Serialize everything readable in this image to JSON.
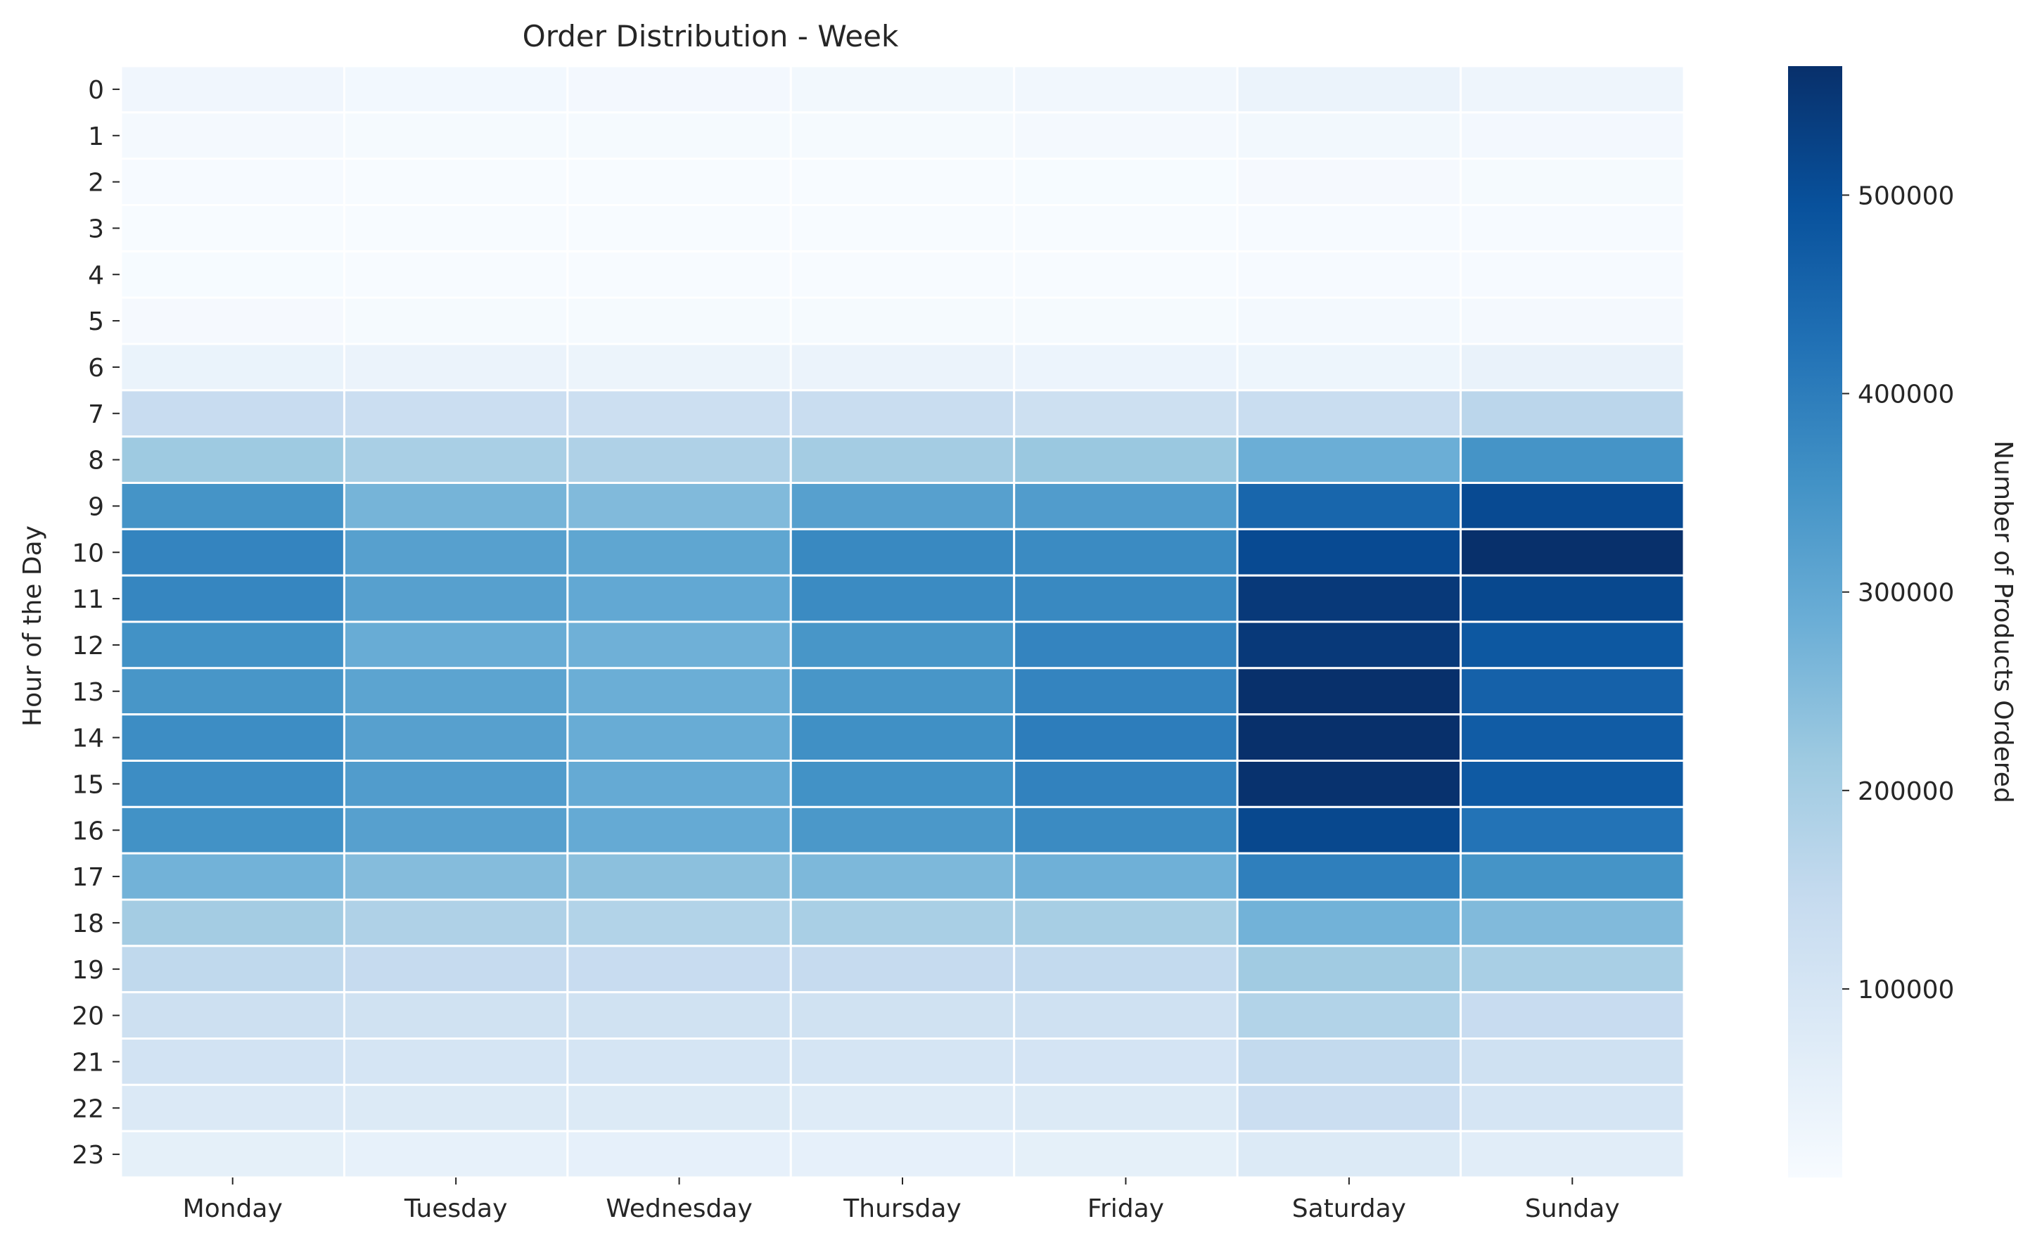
{
  "chart_data": {
    "type": "heatmap",
    "title": "Order Distribution - Week",
    "xlabel": "",
    "ylabel": "Hour of the Day",
    "colorbar_label": "Number of Products Ordered",
    "colormap": "Blues",
    "colormap_stops": [
      "#f7fbff",
      "#deebf7",
      "#c6dbef",
      "#9ecae1",
      "#6baed6",
      "#4292c6",
      "#2171b5",
      "#08519c",
      "#08306b"
    ],
    "x_categories": [
      "Monday",
      "Tuesday",
      "Wednesday",
      "Thursday",
      "Friday",
      "Saturday",
      "Sunday"
    ],
    "y_categories": [
      "0",
      "1",
      "2",
      "3",
      "4",
      "5",
      "6",
      "7",
      "8",
      "9",
      "10",
      "11",
      "12",
      "13",
      "14",
      "15",
      "16",
      "17",
      "18",
      "19",
      "20",
      "21",
      "22",
      "23"
    ],
    "value_range": [
      5000,
      565000
    ],
    "colorbar_ticks": [
      100000,
      200000,
      300000,
      400000,
      500000
    ],
    "colorbar_tick_labels": [
      "100000",
      "200000",
      "300000",
      "400000",
      "500000"
    ],
    "values": [
      [
        25000,
        18000,
        17000,
        19000,
        22000,
        38000,
        30000
      ],
      [
        14000,
        10000,
        10000,
        11000,
        13000,
        20000,
        17000
      ],
      [
        8000,
        6000,
        6000,
        6000,
        7000,
        12000,
        10000
      ],
      [
        6000,
        5000,
        5000,
        5000,
        6000,
        9000,
        8000
      ],
      [
        7000,
        5000,
        5000,
        5000,
        6000,
        9000,
        8000
      ],
      [
        12000,
        10000,
        10000,
        10000,
        11000,
        15000,
        14000
      ],
      [
        42000,
        38000,
        37000,
        38000,
        35000,
        32000,
        45000
      ],
      [
        140000,
        130000,
        128000,
        135000,
        125000,
        135000,
        165000
      ],
      [
        215000,
        195000,
        185000,
        205000,
        220000,
        285000,
        350000
      ],
      [
        350000,
        270000,
        255000,
        320000,
        330000,
        450000,
        510000
      ],
      [
        385000,
        320000,
        305000,
        375000,
        370000,
        510000,
        565000
      ],
      [
        380000,
        320000,
        300000,
        370000,
        375000,
        545000,
        515000
      ],
      [
        355000,
        290000,
        280000,
        345000,
        385000,
        545000,
        480000
      ],
      [
        345000,
        310000,
        285000,
        345000,
        385000,
        565000,
        460000
      ],
      [
        365000,
        320000,
        290000,
        360000,
        400000,
        565000,
        470000
      ],
      [
        365000,
        330000,
        295000,
        355000,
        390000,
        560000,
        475000
      ],
      [
        355000,
        320000,
        295000,
        340000,
        370000,
        515000,
        420000
      ],
      [
        275000,
        250000,
        240000,
        260000,
        280000,
        395000,
        350000
      ],
      [
        205000,
        185000,
        180000,
        195000,
        200000,
        275000,
        255000
      ],
      [
        155000,
        145000,
        140000,
        145000,
        150000,
        210000,
        195000
      ],
      [
        125000,
        115000,
        115000,
        115000,
        120000,
        180000,
        140000
      ],
      [
        110000,
        100000,
        100000,
        100000,
        105000,
        150000,
        120000
      ],
      [
        85000,
        80000,
        80000,
        75000,
        80000,
        130000,
        100000
      ],
      [
        55000,
        50000,
        52000,
        52000,
        55000,
        80000,
        68000
      ]
    ]
  }
}
